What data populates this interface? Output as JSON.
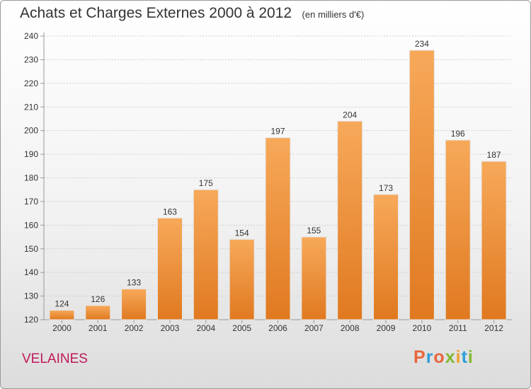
{
  "header": {
    "title": "Achats et Charges Externes 2000 à 2012",
    "unit_note": "(en milliers d'€)"
  },
  "footer": {
    "commune": "VELAINES",
    "logo_text": "Proxiti"
  },
  "colors": {
    "bar_light": "#f7a95a",
    "bar_dark": "#e07920",
    "commune": "#c0185a",
    "logo_letters": [
      "#e8643c",
      "#2e9fd8",
      "#e8643c",
      "#82b830",
      "#f0a030",
      "#2e9fd8",
      "#82b830"
    ]
  },
  "chart_data": {
    "type": "bar",
    "title": "Achats et Charges Externes 2000 à 2012",
    "ylabel": "",
    "xlabel": "",
    "categories": [
      "2000",
      "2001",
      "2002",
      "2003",
      "2004",
      "2005",
      "2006",
      "2007",
      "2008",
      "2009",
      "2010",
      "2011",
      "2012"
    ],
    "values": [
      124,
      126,
      133,
      163,
      175,
      154,
      197,
      155,
      204,
      173,
      234,
      196,
      187
    ],
    "ylim": [
      120,
      240
    ],
    "yticks": [
      120,
      130,
      140,
      150,
      160,
      170,
      180,
      190,
      200,
      210,
      220,
      230,
      240
    ],
    "grid": true,
    "legend": "none"
  }
}
